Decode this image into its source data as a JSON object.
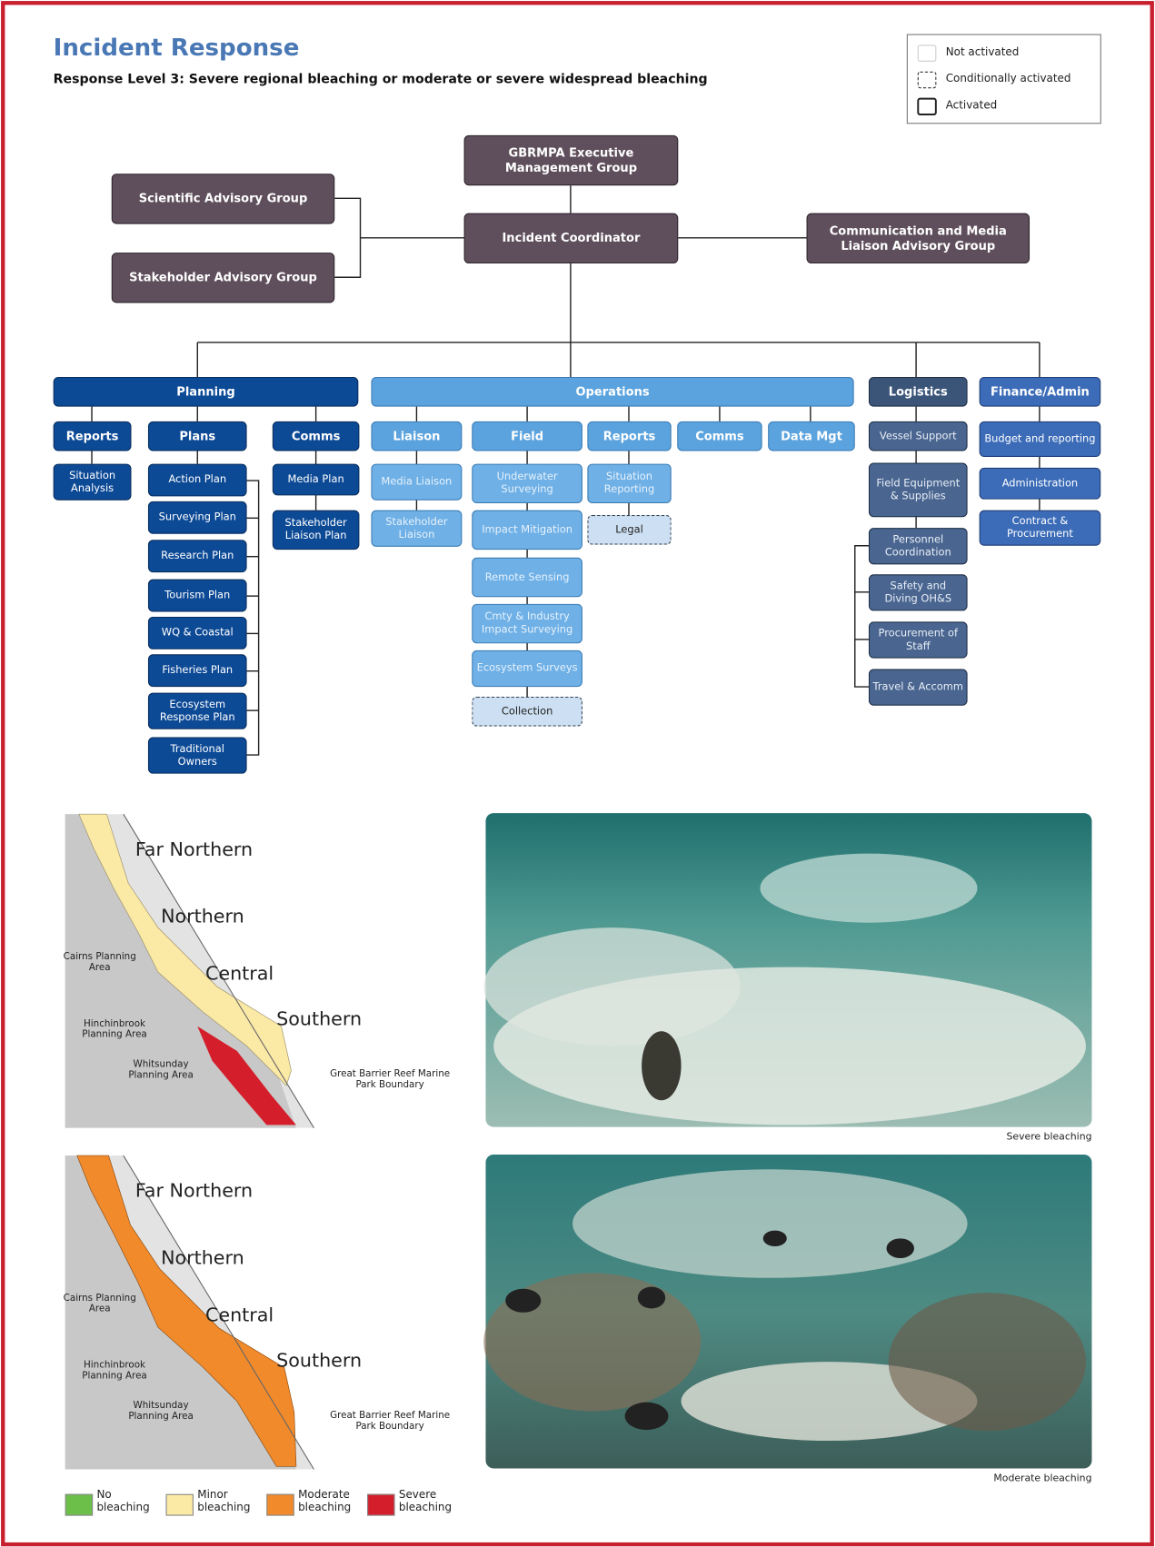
{
  "header": {
    "title": "Incident Response",
    "subtitle": "Response Level 3: Severe regional bleaching or moderate or severe widespread bleaching"
  },
  "legend": [
    "Not activated",
    "Conditionally activated",
    "Activated"
  ],
  "nodes": [
    {
      "label": "GBRMPA Executive Management Group"
    },
    {
      "label": "Incident Coordinator"
    },
    {
      "label": "Scientific Advisory Group"
    },
    {
      "label": "Stakeholder Advisory Group"
    },
    {
      "label": "Communication and Media Liaison Advisory Group"
    },
    {
      "label": "Planning"
    },
    {
      "label": "Operations"
    },
    {
      "label": "Logistics"
    },
    {
      "label": "Finance/Admin"
    },
    {
      "label": "Reports"
    },
    {
      "label": "Plans"
    },
    {
      "label": "Comms"
    },
    {
      "label": "Situation Analysis"
    },
    {
      "label": "Action Plan"
    },
    {
      "label": "Surveying Plan"
    },
    {
      "label": "Research Plan"
    },
    {
      "label": "Tourism Plan"
    },
    {
      "label": "WQ & Coastal"
    },
    {
      "label": "Fisheries Plan"
    },
    {
      "label": "Ecosystem Response Plan"
    },
    {
      "label": "Traditional Owners"
    },
    {
      "label": "Media Plan"
    },
    {
      "label": "Stakeholder Liaison Plan"
    },
    {
      "label": "Liaison"
    },
    {
      "label": "Field"
    },
    {
      "label": "Reports"
    },
    {
      "label": "Comms"
    },
    {
      "label": "Data Mgt"
    },
    {
      "label": "Media Liaison"
    },
    {
      "label": "Stakeholder Liaison"
    },
    {
      "label": "Underwater Surveying"
    },
    {
      "label": "Impact Mitigation"
    },
    {
      "label": "Remote Sensing"
    },
    {
      "label": "Cmty & Industry Impact Surveying"
    },
    {
      "label": "Ecosystem Surveys"
    },
    {
      "label": "Collection"
    },
    {
      "label": "Situation Reporting"
    },
    {
      "label": "Legal"
    },
    {
      "label": "Vessel Support"
    },
    {
      "label": "Field Equipment & Supplies"
    },
    {
      "label": "Personnel Coordination"
    },
    {
      "label": "Safety and Diving OH&S"
    },
    {
      "label": "Procurement of Staff"
    },
    {
      "label": "Travel & Accomm"
    },
    {
      "label": "Budget and reporting"
    },
    {
      "label": "Administration"
    },
    {
      "label": "Contract & Procurement"
    }
  ],
  "maps": [
    {
      "regions": [
        "Far Northern",
        "Northern",
        "Central",
        "Southern"
      ],
      "areas": [
        "Cairns Planning Area",
        "Hinchinbrook Planning Area",
        "Whitsunday Planning Area"
      ],
      "boundary": "Great Barrier Reef Marine Park Boundary"
    },
    {
      "regions": [
        "Far Northern",
        "Northern",
        "Central",
        "Southern"
      ],
      "areas": [
        "Cairns Planning Area",
        "Hinchinbrook Planning Area",
        "Whitsunday Planning Area"
      ],
      "boundary": "Great Barrier Reef Marine Park Boundary"
    }
  ],
  "photos": [
    {
      "caption": "Severe bleaching"
    },
    {
      "caption": "Moderate bleaching"
    }
  ],
  "bleaching_legend": [
    {
      "label": "No bleaching",
      "color": "#6cc04a"
    },
    {
      "label": "Minor bleaching",
      "color": "#fbe9a6"
    },
    {
      "label": "Moderate bleaching",
      "color": "#f18a2b"
    },
    {
      "label": "Severe bleaching",
      "color": "#d41e2b"
    }
  ]
}
